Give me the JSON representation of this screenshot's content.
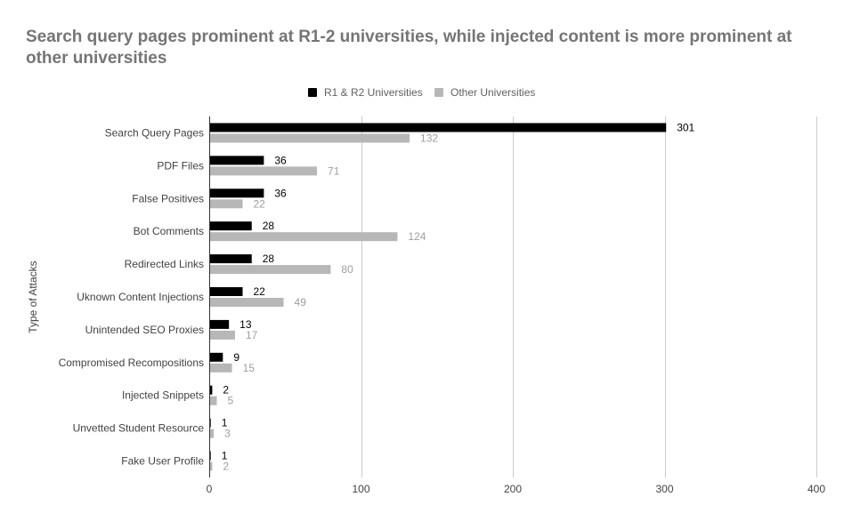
{
  "chart_data": {
    "type": "bar",
    "orientation": "horizontal",
    "title": "Search query pages prominent at R1-2 universities, while injected content is more prominent at other universities",
    "ylabel": "Type of Attacks",
    "xlabel": "",
    "xlim": [
      0,
      400
    ],
    "xticks": [
      0,
      100,
      200,
      300,
      400
    ],
    "grid": true,
    "legend_position": "top",
    "categories": [
      "Search Query Pages",
      "PDF Files",
      "False Positives",
      "Bot Comments",
      "Redirected Links",
      "Uknown Content Injections",
      "Unintended SEO Proxies",
      "Compromised Recompositions",
      "Injected Snippets",
      "Unvetted Student Resource",
      "Fake User Profile"
    ],
    "series": [
      {
        "name": "R1 & R2 Universities",
        "color": "#000000",
        "label_color": "#000000",
        "values": [
          301,
          36,
          36,
          28,
          28,
          22,
          13,
          9,
          2,
          1,
          1
        ]
      },
      {
        "name": "Other Universities",
        "color": "#b7b7b7",
        "label_color": "#9e9e9e",
        "values": [
          132,
          71,
          22,
          124,
          80,
          49,
          17,
          15,
          5,
          3,
          2
        ]
      }
    ]
  }
}
